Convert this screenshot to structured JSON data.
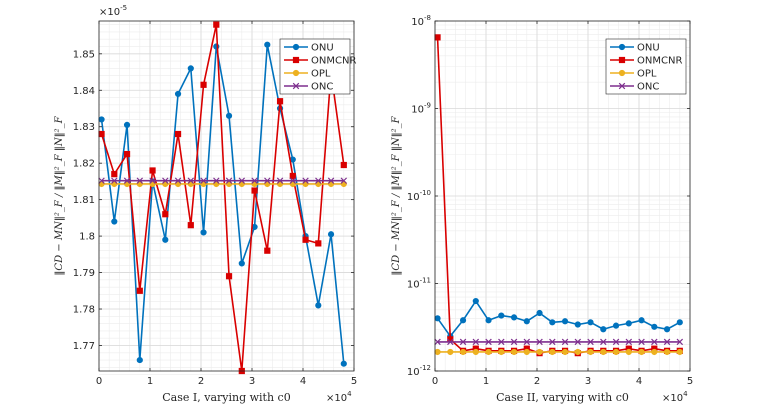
{
  "chart_data": [
    {
      "type": "line",
      "yscale": "linear",
      "xlabel": "Case I, varying with c0",
      "ylabel": "‖CD − MN‖²_F / ‖M‖²_F ‖N‖²_F",
      "x_exponent_label": "×10^4",
      "y_exponent_label": "×10^-5",
      "xlim": [
        0,
        50000
      ],
      "ylim": [
        1.763,
        1.859
      ],
      "xticks": [
        0,
        10000,
        20000,
        30000,
        40000,
        50000
      ],
      "xtick_labels": [
        "0",
        "1",
        "2",
        "3",
        "4",
        "5"
      ],
      "yticks": [
        1.77,
        1.78,
        1.79,
        1.8,
        1.81,
        1.82,
        1.83,
        1.84,
        1.85
      ],
      "ytick_labels": [
        "1.77",
        "1.78",
        "1.79",
        "1.8",
        "1.81",
        "1.82",
        "1.83",
        "1.84",
        "1.85"
      ],
      "grid": true,
      "legend_position": "top-right",
      "x": [
        500,
        3000,
        5500,
        8000,
        10500,
        13000,
        15500,
        18000,
        20500,
        23000,
        25500,
        28000,
        30500,
        33000,
        35500,
        38000,
        40500,
        43000,
        45500,
        48000
      ],
      "series": [
        {
          "name": "ONU",
          "color": "#0072BD",
          "marker": "circle",
          "values": [
            1.832,
            1.804,
            1.8305,
            1.766,
            1.815,
            1.799,
            1.839,
            1.846,
            1.801,
            1.852,
            1.833,
            1.7925,
            1.8025,
            1.8525,
            1.835,
            1.821,
            1.8,
            1.781,
            1.8005,
            1.765
          ]
        },
        {
          "name": "ONMCNR",
          "color": "#D90000",
          "marker": "square",
          "values": [
            1.828,
            1.817,
            1.8225,
            1.785,
            1.818,
            1.806,
            1.828,
            1.803,
            1.8415,
            1.858,
            1.789,
            1.763,
            1.8125,
            1.796,
            1.837,
            1.8165,
            1.799,
            1.798,
            1.845,
            1.8195
          ]
        },
        {
          "name": "OPL",
          "color": "#EDB120",
          "marker": "circle",
          "values": [
            1.8143,
            1.8143,
            1.8143,
            1.8143,
            1.8143,
            1.8143,
            1.8143,
            1.8143,
            1.8143,
            1.8143,
            1.8143,
            1.8143,
            1.8143,
            1.8143,
            1.8143,
            1.8143,
            1.8143,
            1.8143,
            1.8143,
            1.8143
          ]
        },
        {
          "name": "ONC",
          "color": "#7E2F8E",
          "marker": "x",
          "values": [
            1.8152,
            1.8152,
            1.8152,
            1.8152,
            1.8152,
            1.8152,
            1.8152,
            1.8152,
            1.8152,
            1.8152,
            1.8152,
            1.8152,
            1.8152,
            1.8152,
            1.8152,
            1.8152,
            1.8152,
            1.8152,
            1.8152,
            1.8152
          ]
        }
      ]
    },
    {
      "type": "line",
      "yscale": "log",
      "xlabel": "Case II, varying with c0",
      "ylabel": "‖CD − MN‖²_F / ‖M‖²_F ‖N‖²_F",
      "x_exponent_label": "×10^4",
      "xlim": [
        0,
        50000
      ],
      "ylim": [
        1e-12,
        1e-08
      ],
      "xticks": [
        0,
        10000,
        20000,
        30000,
        40000,
        50000
      ],
      "xtick_labels": [
        "0",
        "1",
        "2",
        "3",
        "4",
        "5"
      ],
      "yticks": [
        1e-12,
        1e-11,
        1e-10,
        1e-09,
        1e-08
      ],
      "ytick_exponents": [
        "-12",
        "-11",
        "-10",
        "-9",
        "-8"
      ],
      "ytick_base": "10",
      "grid": true,
      "legend_position": "top-right",
      "x": [
        500,
        3000,
        5500,
        8000,
        10500,
        13000,
        15500,
        18000,
        20500,
        23000,
        25500,
        28000,
        30500,
        33000,
        35500,
        38000,
        40500,
        43000,
        45500,
        48000
      ],
      "series": [
        {
          "name": "ONU",
          "color": "#0072BD",
          "marker": "circle",
          "values": [
            4e-12,
            2.5e-12,
            3.8e-12,
            6.3e-12,
            3.8e-12,
            4.3e-12,
            4.1e-12,
            3.7e-12,
            4.6e-12,
            3.6e-12,
            3.7e-12,
            3.4e-12,
            3.6e-12,
            3e-12,
            3.3e-12,
            3.5e-12,
            3.8e-12,
            3.2e-12,
            3e-12,
            3.6e-12
          ]
        },
        {
          "name": "ONMCNR",
          "color": "#D90000",
          "marker": "square",
          "values": [
            6.5e-09,
            2.3e-12,
            1.7e-12,
            1.8e-12,
            1.7e-12,
            1.7e-12,
            1.7e-12,
            1.8e-12,
            1.6e-12,
            1.7e-12,
            1.7e-12,
            1.6e-12,
            1.7e-12,
            1.7e-12,
            1.7e-12,
            1.8e-12,
            1.7e-12,
            1.8e-12,
            1.7e-12,
            1.7e-12
          ]
        },
        {
          "name": "OPL",
          "color": "#EDB120",
          "marker": "circle",
          "values": [
            1.65e-12,
            1.65e-12,
            1.65e-12,
            1.65e-12,
            1.65e-12,
            1.65e-12,
            1.65e-12,
            1.65e-12,
            1.65e-12,
            1.65e-12,
            1.65e-12,
            1.65e-12,
            1.65e-12,
            1.65e-12,
            1.65e-12,
            1.65e-12,
            1.65e-12,
            1.65e-12,
            1.65e-12,
            1.65e-12
          ]
        },
        {
          "name": "ONC",
          "color": "#7E2F8E",
          "marker": "x",
          "values": [
            2.15e-12,
            2.15e-12,
            2.15e-12,
            2.15e-12,
            2.15e-12,
            2.15e-12,
            2.15e-12,
            2.15e-12,
            2.15e-12,
            2.15e-12,
            2.15e-12,
            2.15e-12,
            2.15e-12,
            2.15e-12,
            2.15e-12,
            2.15e-12,
            2.15e-12,
            2.15e-12,
            2.15e-12,
            2.15e-12
          ]
        }
      ]
    }
  ]
}
